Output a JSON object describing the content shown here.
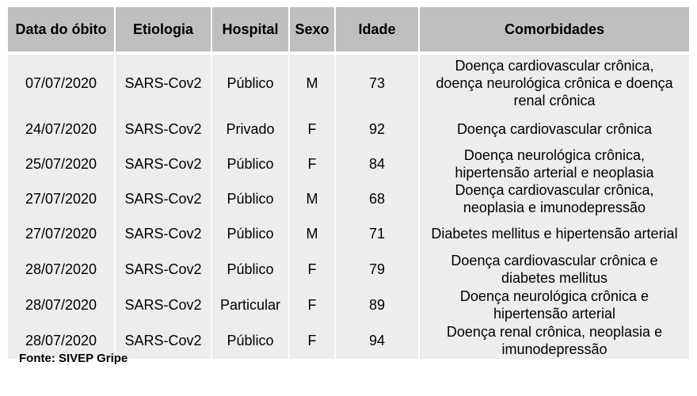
{
  "headers": [
    "Data do óbito",
    "Etiologia",
    "Hospital",
    "Sexo",
    "Idade",
    "Comorbidades"
  ],
  "rows": [
    {
      "data": "07/07/2020",
      "etiologia": "SARS-Cov2",
      "hospital": "Público",
      "sexo": "M",
      "idade": "73",
      "comorbidades": [
        "Doença cardiovascular crônica,",
        "doença neurológica crônica e doença",
        "renal crônica"
      ]
    },
    {
      "data": "24/07/2020",
      "etiologia": "SARS-Cov2",
      "hospital": "Privado",
      "sexo": "F",
      "idade": "92",
      "comorbidades": [
        "Doença cardiovascular crônica"
      ]
    },
    {
      "data": "25/07/2020",
      "etiologia": "SARS-Cov2",
      "hospital": "Público",
      "sexo": "F",
      "idade": "84",
      "comorbidades": [
        "Doença neurológica crônica,",
        "hipertensão arterial e neoplasia"
      ]
    },
    {
      "data": "27/07/2020",
      "etiologia": "SARS-Cov2",
      "hospital": "Público",
      "sexo": "M",
      "idade": "68",
      "comorbidades": [
        "Doença cardiovascular crônica,",
        "neoplasia e imunodepressão"
      ]
    },
    {
      "data": "27/07/2020",
      "etiologia": "SARS-Cov2",
      "hospital": "Público",
      "sexo": "M",
      "idade": "71",
      "comorbidades": [
        "Diabetes mellitus e hipertensão arterial"
      ]
    },
    {
      "data": "28/07/2020",
      "etiologia": "SARS-Cov2",
      "hospital": "Público",
      "sexo": "F",
      "idade": "79",
      "comorbidades": [
        "Doença cardiovascular crônica e",
        "diabetes mellitus"
      ]
    },
    {
      "data": "28/07/2020",
      "etiologia": "SARS-Cov2",
      "hospital": "Particular",
      "sexo": "F",
      "idade": "89",
      "comorbidades": [
        "Doença neurológica crônica e",
        "hipertensão arterial"
      ]
    },
    {
      "data": "28/07/2020",
      "etiologia": "SARS-Cov2",
      "hospital": "Público",
      "sexo": "F",
      "idade": "94",
      "comorbidades": [
        "Doença renal crônica, neoplasia e",
        "imunodepressão"
      ]
    }
  ],
  "source": "Fonte: SIVEP Gripe",
  "colors": {
    "header_bg": "#bfbfbf",
    "row_bg": "#ededed",
    "separator": "#ffffff"
  }
}
